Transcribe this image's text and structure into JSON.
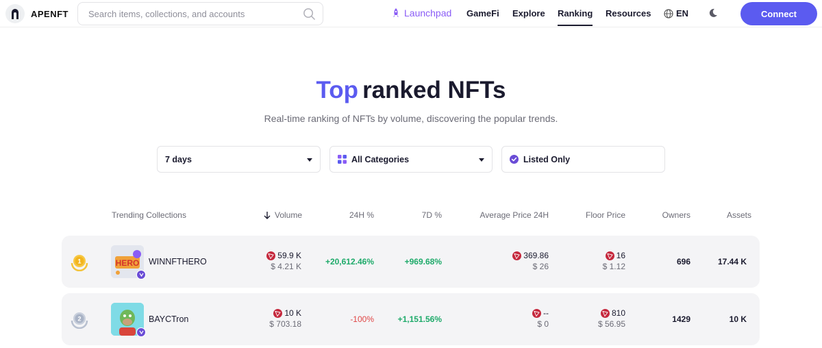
{
  "header": {
    "logo_text": "APENFT",
    "search_placeholder": "Search items, collections, and accounts",
    "nav": {
      "launchpad": "Launchpad",
      "gamefi": "GameFi",
      "explore": "Explore",
      "ranking": "Ranking",
      "resources": "Resources",
      "language": "EN"
    },
    "connect_label": "Connect"
  },
  "hero": {
    "title_accent": "Top",
    "title_rest": "ranked NFTs",
    "subtitle": "Real-time ranking of NFTs by volume, discovering the popular trends."
  },
  "filters": {
    "period": "7 days",
    "category": "All Categories",
    "listed_only": "Listed Only"
  },
  "table": {
    "headers": {
      "collection": "Trending Collections",
      "volume": "Volume",
      "change_24h": "24H %",
      "change_7d": "7D %",
      "avg_price": "Average Price 24H",
      "floor": "Floor Price",
      "owners": "Owners",
      "assets": "Assets"
    },
    "rows": [
      {
        "rank": "1",
        "name": "WINNFTHERO",
        "volume": "59.9 K",
        "volume_usd": "$ 4.21 K",
        "change_24h": "+20,612.46%",
        "change_7d": "+969.68%",
        "avg_price": "369.86",
        "avg_price_usd": "$ 26",
        "floor": "16",
        "floor_usd": "$ 1.12",
        "owners": "696",
        "assets": "17.44 K"
      },
      {
        "rank": "2",
        "name": "BAYCTron",
        "volume": "10 K",
        "volume_usd": "$ 703.18",
        "change_24h": "-100%",
        "change_7d": "+1,151.56%",
        "avg_price": "--",
        "avg_price_usd": "$ 0",
        "floor": "810",
        "floor_usd": "$ 56.95",
        "owners": "1429",
        "assets": "10 K"
      }
    ]
  },
  "colors": {
    "accent": "#5b5bf0",
    "launchpad": "#8a5cf6",
    "positive": "#1eaa6a",
    "negative": "#e04545",
    "tron": "#c5283d"
  }
}
